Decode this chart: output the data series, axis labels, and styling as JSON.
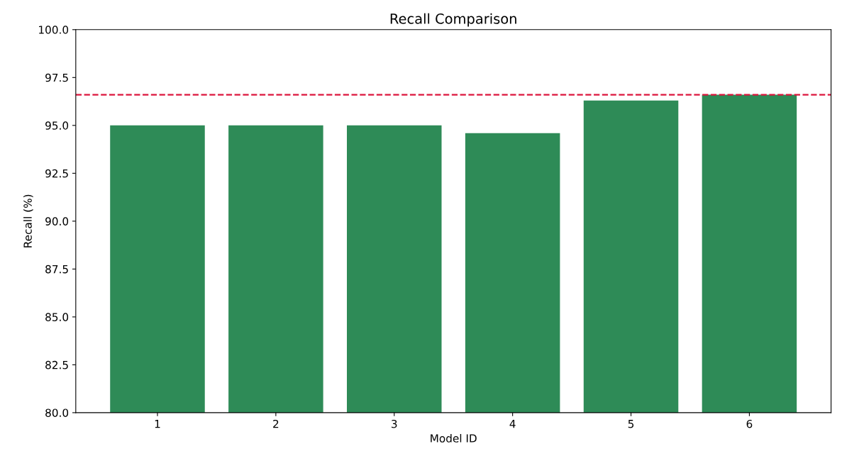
{
  "chart_data": {
    "type": "bar",
    "title": "Recall Comparison",
    "xlabel": "Model ID",
    "ylabel": "Recall (%)",
    "categories": [
      "1",
      "2",
      "3",
      "4",
      "5",
      "6"
    ],
    "values": [
      95.0,
      95.0,
      95.0,
      94.6,
      96.3,
      96.6
    ],
    "color": "#2e8b57",
    "ylim": [
      80,
      100
    ],
    "yticks": [
      {
        "value": 80,
        "label": "80.0"
      },
      {
        "value": 82.5,
        "label": "82.5"
      },
      {
        "value": 85,
        "label": "85.0"
      },
      {
        "value": 87.5,
        "label": "87.5"
      },
      {
        "value": 90,
        "label": "90.0"
      },
      {
        "value": 92.5,
        "label": "92.5"
      },
      {
        "value": 95,
        "label": "95.0"
      },
      {
        "value": 97.5,
        "label": "97.5"
      },
      {
        "value": 100,
        "label": "100.0"
      }
    ],
    "ref_lines": [
      {
        "axis": "y",
        "value": 96.6,
        "color": "#dc143c",
        "line_style": "dashed"
      }
    ],
    "grid": false
  }
}
